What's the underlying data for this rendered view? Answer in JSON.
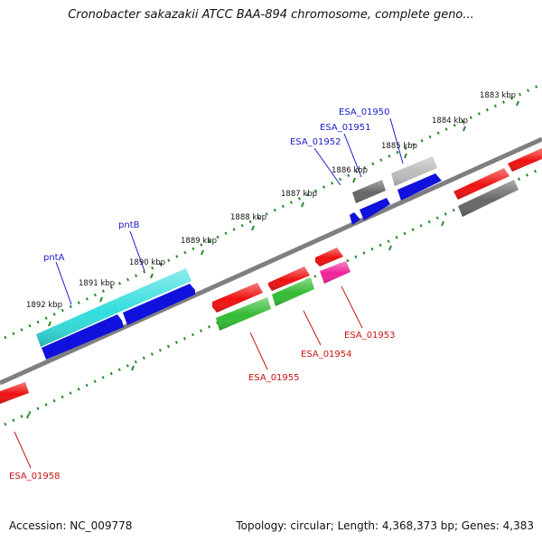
{
  "title": "Cronobacter sakazakii ATCC BAA-894 chromosome, complete geno...",
  "footer": {
    "accession": "Accession: NC_009778",
    "topology": "Topology: circular; Length: 4,368,373 bp; Genes: 4,383"
  },
  "ruler_labels": [
    "1883 kbp",
    "1884 kbp",
    "1885 kbp",
    "1886 kbp",
    "1887 kbp",
    "1888 kbp",
    "1889 kbp",
    "1890 kbp",
    "1891 kbp",
    "1892 kbp"
  ],
  "gene_labels_top": [
    "ESA_01950",
    "ESA_01951",
    "ESA_01952",
    "pntB",
    "pntA"
  ],
  "gene_labels_bottom": [
    "ESA_01953",
    "ESA_01954",
    "ESA_01955",
    "ESA_01958"
  ],
  "colors": {
    "backbone": "#7f7f7f",
    "label_top": "#1a1acc",
    "label_bottom": "#cc1111",
    "tick": "#2a8a2a",
    "cyan": "#33dddd",
    "blue": "#1111dd",
    "red": "#ee1111",
    "green": "#33bb33",
    "magenta": "#ee2299",
    "darkgray": "#666666",
    "lightgray": "#bbbbbb"
  }
}
